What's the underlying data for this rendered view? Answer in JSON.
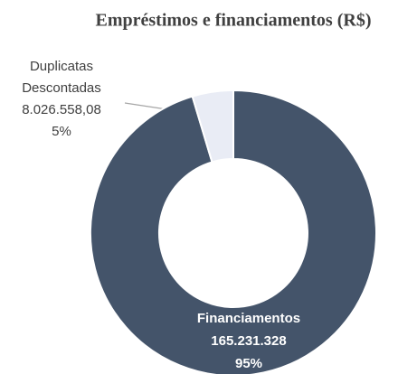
{
  "chart_data": {
    "type": "donut",
    "title": "Empréstimos e financiamentos (R$)",
    "categories": [
      "Financiamentos",
      "Duplicatas Descontadas"
    ],
    "values": [
      165231328,
      8026558.08
    ],
    "value_labels": [
      "165.231.328",
      "8.026.558,08"
    ],
    "percentages": [
      95,
      5
    ],
    "percentage_labels": [
      "95%",
      "5%"
    ],
    "colors": [
      "#44546a",
      "#e9ecf5"
    ]
  }
}
